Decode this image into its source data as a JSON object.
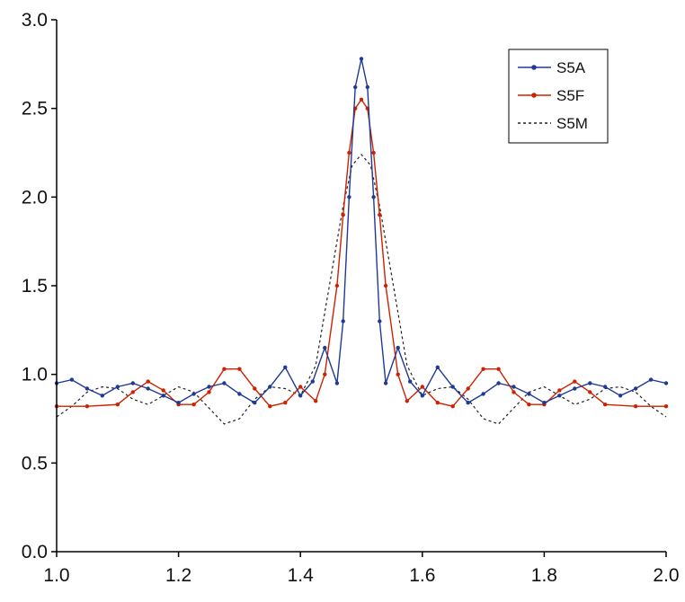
{
  "chart_data": {
    "type": "line",
    "title": "",
    "xlabel": "",
    "ylabel": "",
    "xlim": [
      1.0,
      2.0
    ],
    "ylim": [
      0.0,
      3.0
    ],
    "x_ticks": [
      "1.0",
      "1.2",
      "1.4",
      "1.6",
      "1.8",
      "2.0"
    ],
    "y_ticks": [
      "0.0",
      "0.5",
      "1.0",
      "1.5",
      "2.0",
      "2.5",
      "3.0"
    ],
    "grid": false,
    "legend_position": "top-right",
    "series": [
      {
        "name": "S5A",
        "color": "#1f3a93",
        "style": "solid-with-markers",
        "x": [
          1.0,
          1.025,
          1.05,
          1.075,
          1.1,
          1.125,
          1.15,
          1.175,
          1.2,
          1.225,
          1.25,
          1.275,
          1.3,
          1.325,
          1.35,
          1.375,
          1.4,
          1.42,
          1.44,
          1.46,
          1.47,
          1.48,
          1.49,
          1.5,
          1.51,
          1.52,
          1.53,
          1.54,
          1.56,
          1.58,
          1.6,
          1.625,
          1.65,
          1.675,
          1.7,
          1.725,
          1.75,
          1.775,
          1.8,
          1.825,
          1.85,
          1.875,
          1.9,
          1.925,
          1.95,
          1.975,
          2.0
        ],
        "y": [
          0.95,
          0.97,
          0.92,
          0.88,
          0.93,
          0.95,
          0.92,
          0.88,
          0.84,
          0.89,
          0.93,
          0.95,
          0.89,
          0.84,
          0.93,
          1.04,
          0.88,
          0.96,
          1.15,
          0.95,
          1.3,
          2.0,
          2.62,
          2.78,
          2.62,
          2.0,
          1.3,
          0.95,
          1.15,
          0.96,
          0.88,
          1.04,
          0.93,
          0.84,
          0.89,
          0.95,
          0.93,
          0.89,
          0.84,
          0.88,
          0.92,
          0.95,
          0.93,
          0.88,
          0.92,
          0.97,
          0.95
        ]
      },
      {
        "name": "S5F",
        "color": "#cc2200",
        "style": "solid-with-markers",
        "x": [
          1.0,
          1.05,
          1.1,
          1.125,
          1.15,
          1.175,
          1.2,
          1.225,
          1.25,
          1.275,
          1.3,
          1.325,
          1.35,
          1.375,
          1.4,
          1.425,
          1.44,
          1.46,
          1.47,
          1.48,
          1.49,
          1.5,
          1.51,
          1.52,
          1.53,
          1.54,
          1.56,
          1.575,
          1.6,
          1.625,
          1.65,
          1.675,
          1.7,
          1.725,
          1.75,
          1.775,
          1.8,
          1.825,
          1.85,
          1.875,
          1.9,
          1.95,
          2.0
        ],
        "y": [
          0.82,
          0.82,
          0.83,
          0.9,
          0.96,
          0.91,
          0.83,
          0.83,
          0.9,
          1.03,
          1.03,
          0.92,
          0.82,
          0.84,
          0.93,
          0.85,
          1.0,
          1.5,
          1.9,
          2.25,
          2.5,
          2.55,
          2.5,
          2.25,
          1.9,
          1.5,
          1.0,
          0.85,
          0.93,
          0.84,
          0.82,
          0.92,
          1.03,
          1.03,
          0.9,
          0.83,
          0.83,
          0.91,
          0.96,
          0.9,
          0.83,
          0.82,
          0.82
        ]
      },
      {
        "name": "S5M",
        "color": "#222222",
        "style": "dashed",
        "x": [
          1.0,
          1.025,
          1.05,
          1.075,
          1.1,
          1.125,
          1.15,
          1.175,
          1.2,
          1.225,
          1.25,
          1.275,
          1.3,
          1.325,
          1.35,
          1.375,
          1.4,
          1.425,
          1.45,
          1.47,
          1.485,
          1.5,
          1.515,
          1.53,
          1.55,
          1.575,
          1.6,
          1.625,
          1.65,
          1.675,
          1.7,
          1.725,
          1.75,
          1.775,
          1.8,
          1.825,
          1.85,
          1.875,
          1.9,
          1.925,
          1.95,
          1.975,
          2.0
        ],
        "y": [
          0.76,
          0.82,
          0.9,
          0.93,
          0.92,
          0.86,
          0.83,
          0.88,
          0.93,
          0.9,
          0.81,
          0.72,
          0.75,
          0.86,
          0.93,
          0.92,
          0.88,
          1.05,
          1.55,
          1.95,
          2.18,
          2.24,
          2.18,
          1.95,
          1.55,
          1.05,
          0.88,
          0.92,
          0.93,
          0.86,
          0.75,
          0.72,
          0.81,
          0.9,
          0.93,
          0.88,
          0.83,
          0.86,
          0.92,
          0.93,
          0.9,
          0.82,
          0.76
        ]
      }
    ]
  }
}
